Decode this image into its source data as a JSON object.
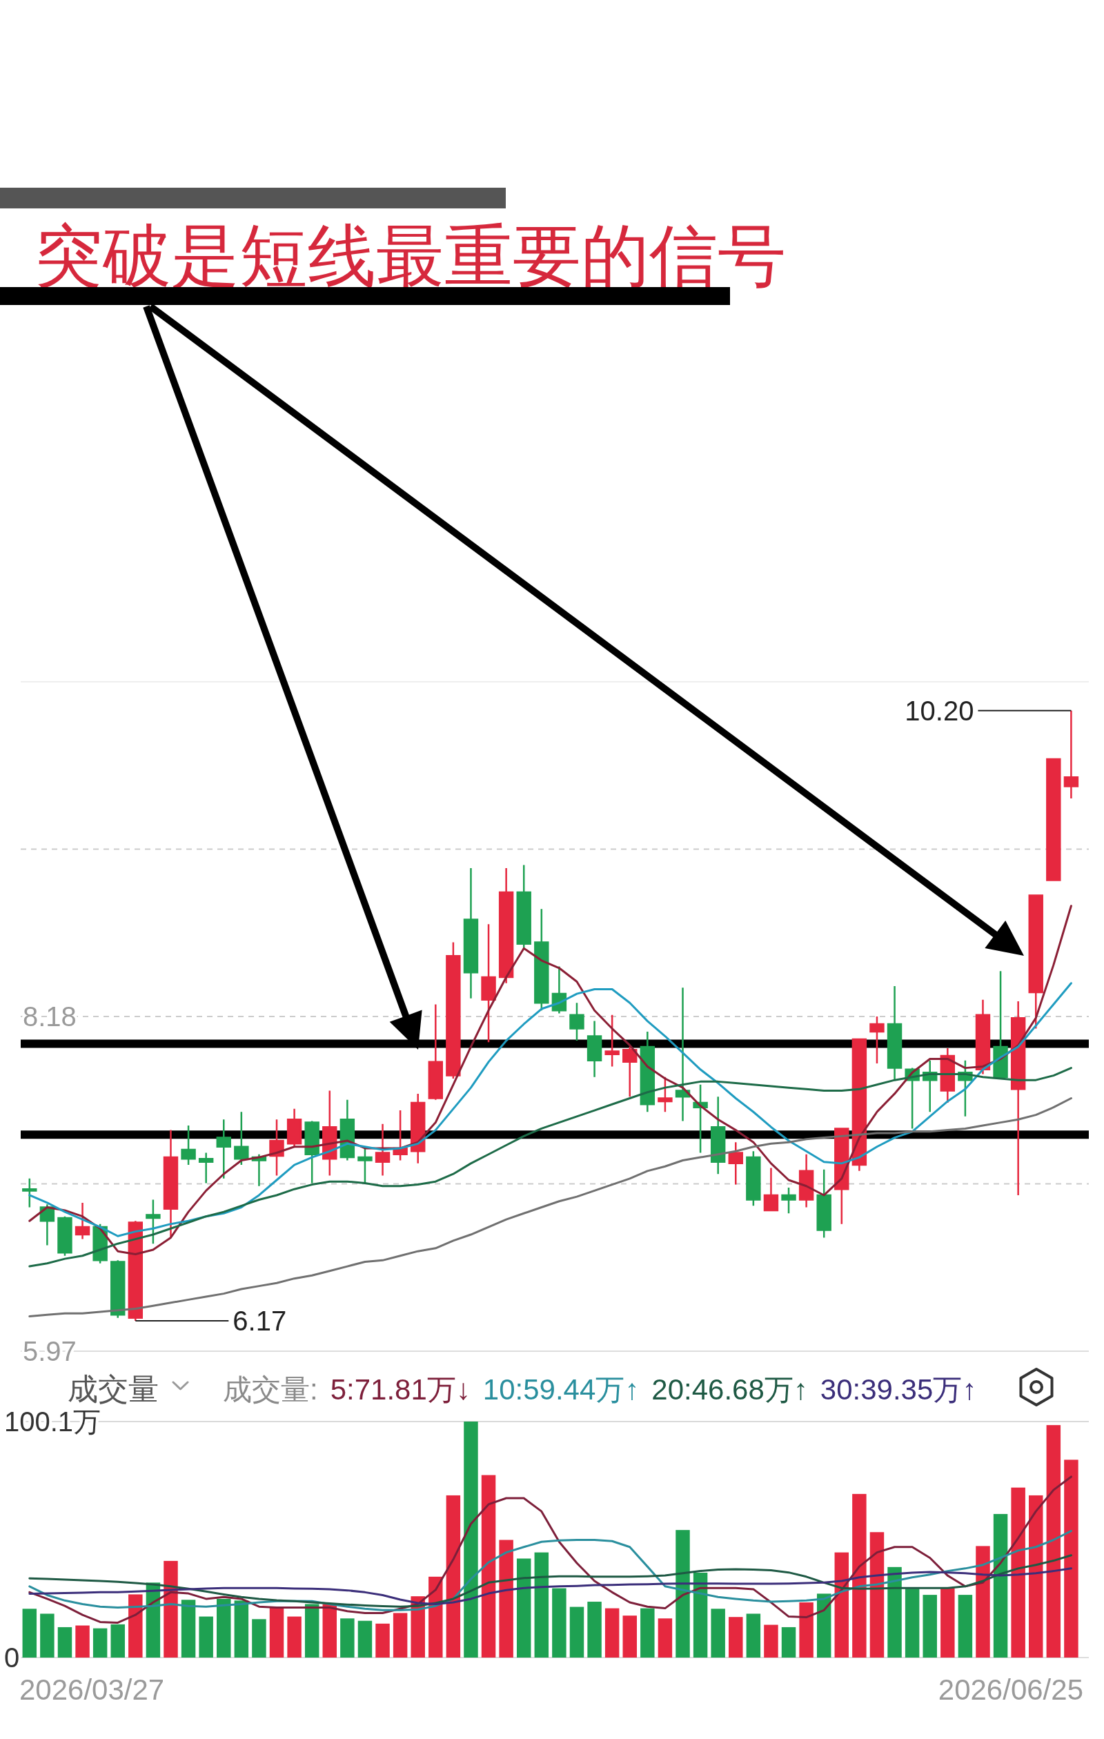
{
  "chart_data": [
    {
      "type": "candlestick",
      "title": "突破是短线最重要的信号",
      "categories": [
        null,
        null,
        null,
        null,
        null,
        null,
        null,
        null,
        null,
        null,
        null,
        null,
        null,
        null,
        null,
        null,
        null,
        null,
        null,
        null,
        null,
        null,
        null,
        null,
        null,
        null,
        null,
        null,
        null,
        null,
        null,
        null,
        null,
        null,
        null,
        null,
        null,
        null,
        null,
        null,
        null,
        null,
        null,
        null,
        null,
        null,
        null,
        null,
        null,
        null,
        null,
        null,
        null,
        null,
        null,
        null,
        null,
        null,
        null,
        null
      ],
      "ohlc": [
        [
          7.04,
          7.11,
          6.92,
          7.03
        ],
        [
          6.92,
          6.94,
          6.67,
          6.83
        ],
        [
          6.85,
          6.86,
          6.6,
          6.62
        ],
        [
          6.74,
          6.95,
          6.71,
          6.79
        ],
        [
          6.79,
          6.81,
          6.55,
          6.57
        ],
        [
          6.56,
          6.57,
          6.19,
          6.21
        ],
        [
          6.19,
          6.83,
          6.17,
          6.82
        ],
        [
          6.87,
          6.97,
          6.68,
          6.85
        ],
        [
          6.91,
          7.43,
          6.72,
          7.25
        ],
        [
          7.3,
          7.46,
          7.2,
          7.24
        ],
        [
          7.24,
          7.28,
          7.08,
          7.22
        ],
        [
          7.38,
          7.5,
          7.11,
          7.32
        ],
        [
          7.32,
          7.55,
          7.2,
          7.24
        ],
        [
          7.25,
          7.27,
          7.06,
          7.23
        ],
        [
          7.26,
          7.5,
          7.13,
          7.36
        ],
        [
          7.34,
          7.57,
          7.32,
          7.5
        ],
        [
          7.48,
          7.49,
          7.08,
          7.27
        ],
        [
          7.24,
          7.69,
          7.13,
          7.45
        ],
        [
          7.5,
          7.63,
          7.23,
          7.25
        ],
        [
          7.25,
          7.31,
          7.08,
          7.23
        ],
        [
          7.22,
          7.47,
          7.13,
          7.28
        ],
        [
          7.27,
          7.56,
          7.23,
          7.31
        ],
        [
          7.29,
          7.67,
          7.21,
          7.61
        ],
        [
          7.64,
          8.26,
          7.63,
          7.88
        ],
        [
          7.79,
          8.67,
          7.77,
          8.58
        ],
        [
          8.82,
          9.16,
          8.3,
          8.47
        ],
        [
          8.29,
          8.79,
          8.01,
          8.44
        ],
        [
          8.44,
          9.16,
          8.4,
          9.0
        ],
        [
          9.0,
          9.18,
          8.63,
          8.66
        ],
        [
          8.67,
          8.89,
          8.22,
          8.27
        ],
        [
          8.33,
          8.51,
          8.2,
          8.22
        ],
        [
          8.19,
          8.27,
          8.02,
          8.1
        ],
        [
          8.05,
          8.15,
          7.78,
          7.89
        ],
        [
          7.93,
          8.19,
          7.85,
          7.95
        ],
        [
          7.88,
          7.98,
          7.65,
          7.96
        ],
        [
          7.98,
          8.08,
          7.55,
          7.6
        ],
        [
          7.62,
          7.78,
          7.55,
          7.64
        ],
        [
          7.69,
          8.37,
          7.49,
          7.65
        ],
        [
          7.61,
          7.73,
          7.28,
          7.58
        ],
        [
          7.45,
          7.65,
          7.14,
          7.22
        ],
        [
          7.21,
          7.35,
          7.07,
          7.28
        ],
        [
          7.25,
          7.29,
          6.93,
          6.97
        ],
        [
          6.9,
          7.18,
          6.9,
          7.0
        ],
        [
          7.0,
          7.05,
          6.88,
          6.97
        ],
        [
          6.97,
          7.27,
          6.92,
          7.16
        ],
        [
          7.0,
          7.17,
          6.72,
          6.77
        ],
        [
          7.04,
          7.44,
          6.81,
          7.44
        ],
        [
          7.2,
          8.03,
          7.16,
          8.03
        ],
        [
          8.08,
          8.18,
          7.87,
          8.13
        ],
        [
          8.13,
          8.38,
          7.76,
          7.84
        ],
        [
          7.83,
          7.84,
          7.44,
          7.76
        ],
        [
          7.81,
          7.89,
          7.55,
          7.76
        ],
        [
          7.69,
          7.97,
          7.61,
          7.92
        ],
        [
          7.81,
          7.89,
          7.52,
          7.76
        ],
        [
          7.83,
          8.29,
          7.8,
          8.19
        ],
        [
          7.98,
          8.48,
          7.78,
          7.78
        ],
        [
          7.7,
          8.28,
          7.0,
          8.17
        ],
        [
          8.34,
          8.98,
          8.1,
          8.98
        ],
        [
          9.08,
          9.88,
          9.08,
          9.88
        ],
        [
          9.7,
          10.2,
          9.62,
          9.76
        ]
      ],
      "colors": [
        "#1ea152",
        "#1ea152",
        "#1ea152",
        "#e6283f",
        "#1ea152",
        "#1ea152",
        "#e6283f",
        "#1ea152",
        "#e6283f",
        "#1ea152",
        "#1ea152",
        "#1ea152",
        "#1ea152",
        "#1ea152",
        "#e6283f",
        "#e6283f",
        "#1ea152",
        "#e6283f",
        "#1ea152",
        "#1ea152",
        "#e6283f",
        "#e6283f",
        "#e6283f",
        "#e6283f",
        "#e6283f",
        "#1ea152",
        "#e6283f",
        "#e6283f",
        "#1ea152",
        "#1ea152",
        "#1ea152",
        "#1ea152",
        "#1ea152",
        "#e6283f",
        "#e6283f",
        "#1ea152",
        "#e6283f",
        "#1ea152",
        "#1ea152",
        "#1ea152",
        "#e6283f",
        "#1ea152",
        "#e6283f",
        "#1ea152",
        "#e6283f",
        "#1ea152",
        "#e6283f",
        "#e6283f",
        "#e6283f",
        "#1ea152",
        "#1ea152",
        "#1ea152",
        "#e6283f",
        "#1ea152",
        "#e6283f",
        "#1ea152",
        "#e6283f",
        "#e6283f",
        "#e6283f",
        "#e6283f"
      ],
      "series": [
        {
          "type": "line",
          "color": "#8b1f35",
          "values": [
            6.83,
            6.92,
            6.9,
            6.86,
            6.78,
            6.63,
            6.61,
            6.64,
            6.72,
            6.89,
            7.03,
            7.14,
            7.23,
            7.25,
            7.28,
            7.32,
            7.32,
            7.34,
            7.36,
            7.31,
            7.31,
            7.31,
            7.35,
            7.48,
            7.73,
            7.98,
            8.22,
            8.44,
            8.63,
            8.55,
            8.5,
            8.41,
            8.22,
            8.1,
            7.99,
            7.85,
            7.77,
            7.71,
            7.59,
            7.5,
            7.43,
            7.35,
            7.21,
            7.1,
            7.06,
            7.0,
            7.11,
            7.38,
            7.55,
            7.67,
            7.81,
            7.9,
            7.9,
            7.84,
            7.85,
            7.9,
            7.99,
            8.17,
            8.52,
            8.91
          ]
        },
        {
          "type": "line",
          "color": "#1f9cc0",
          "values": [
            7.0,
            6.95,
            6.89,
            6.84,
            6.79,
            6.73,
            6.76,
            6.78,
            6.81,
            6.83,
            6.86,
            6.88,
            6.92,
            7.0,
            7.1,
            7.2,
            7.25,
            7.29,
            7.34,
            7.32,
            7.3,
            7.31,
            7.34,
            7.43,
            7.57,
            7.71,
            7.88,
            8.02,
            8.13,
            8.23,
            8.27,
            8.33,
            8.36,
            8.36,
            8.27,
            8.15,
            8.05,
            7.94,
            7.83,
            7.74,
            7.64,
            7.55,
            7.45,
            7.36,
            7.29,
            7.22,
            7.21,
            7.25,
            7.32,
            7.38,
            7.42,
            7.52,
            7.62,
            7.7,
            7.83,
            7.91,
            7.98,
            8.12,
            8.26,
            8.4
          ]
        },
        {
          "type": "line",
          "color": "#1d6b48",
          "values": [
            6.53,
            6.55,
            6.58,
            6.6,
            6.64,
            6.68,
            6.71,
            6.74,
            6.78,
            6.82,
            6.86,
            6.89,
            6.93,
            6.97,
            7.0,
            7.04,
            7.07,
            7.09,
            7.09,
            7.08,
            7.06,
            7.06,
            7.07,
            7.09,
            7.14,
            7.21,
            7.27,
            7.33,
            7.39,
            7.44,
            7.48,
            7.52,
            7.56,
            7.6,
            7.64,
            7.68,
            7.71,
            7.73,
            7.75,
            7.75,
            7.74,
            7.73,
            7.72,
            7.71,
            7.7,
            7.69,
            7.69,
            7.7,
            7.73,
            7.76,
            7.78,
            7.8,
            7.8,
            7.8,
            7.78,
            7.77,
            7.76,
            7.76,
            7.79,
            7.84
          ]
        },
        {
          "type": "line",
          "color": "#707070",
          "values": [
            6.2,
            6.21,
            6.22,
            6.22,
            6.23,
            6.24,
            6.25,
            6.27,
            6.29,
            6.31,
            6.33,
            6.35,
            6.38,
            6.4,
            6.42,
            6.45,
            6.47,
            6.5,
            6.53,
            6.56,
            6.57,
            6.6,
            6.63,
            6.65,
            6.7,
            6.74,
            6.79,
            6.84,
            6.88,
            6.92,
            6.96,
            6.99,
            7.03,
            7.07,
            7.11,
            7.16,
            7.19,
            7.23,
            7.25,
            7.27,
            7.29,
            7.32,
            7.34,
            7.35,
            7.37,
            7.38,
            7.39,
            7.4,
            7.41,
            7.41,
            7.42,
            7.42,
            7.43,
            7.44,
            7.46,
            7.48,
            7.5,
            7.53,
            7.58,
            7.64
          ]
        }
      ],
      "ylim": [
        5.97,
        10.39
      ],
      "yticks": [
        5.97,
        {
          "value": 7.075,
          "label": null
        },
        8.18,
        {
          "value": 9.285,
          "label": null
        }
      ],
      "grid": "y",
      "tick_labels": "y",
      "ref_lines": [
        {
          "axis": "y",
          "value": 7.4,
          "color": "#000000"
        },
        {
          "axis": "y",
          "value": 8.0,
          "color": "#000000"
        }
      ],
      "annotations": [
        "10.20",
        "6.17"
      ]
    },
    {
      "type": "bar",
      "title": "成交量",
      "legend_title": "成交量:",
      "legend": "top",
      "tick_labels": "y",
      "categories": [
        null,
        null,
        null,
        null,
        null,
        null,
        null,
        null,
        null,
        null,
        null,
        null,
        null,
        null,
        null,
        null,
        null,
        null,
        null,
        null,
        null,
        null,
        null,
        null,
        null,
        null,
        null,
        null,
        null,
        null,
        null,
        null,
        null,
        null,
        null,
        null,
        null,
        null,
        null,
        null,
        null,
        null,
        null,
        null,
        null,
        null,
        null,
        null,
        null,
        null,
        null,
        null,
        null,
        null,
        null,
        null,
        null,
        null,
        null,
        null
      ],
      "series": [
        {
          "type": "bar",
          "colors": [
            "#1ea152",
            "#1ea152",
            "#1ea152",
            "#e6283f",
            "#1ea152",
            "#1ea152",
            "#e6283f",
            "#1ea152",
            "#e6283f",
            "#1ea152",
            "#1ea152",
            "#1ea152",
            "#1ea152",
            "#1ea152",
            "#e6283f",
            "#e6283f",
            "#1ea152",
            "#e6283f",
            "#1ea152",
            "#1ea152",
            "#e6283f",
            "#e6283f",
            "#e6283f",
            "#e6283f",
            "#e6283f",
            "#1ea152",
            "#e6283f",
            "#e6283f",
            "#1ea152",
            "#1ea152",
            "#1ea152",
            "#1ea152",
            "#1ea152",
            "#e6283f",
            "#e6283f",
            "#1ea152",
            "#e6283f",
            "#1ea152",
            "#1ea152",
            "#1ea152",
            "#e6283f",
            "#1ea152",
            "#e6283f",
            "#1ea152",
            "#e6283f",
            "#1ea152",
            "#e6283f",
            "#e6283f",
            "#e6283f",
            "#1ea152",
            "#1ea152",
            "#1ea152",
            "#e6283f",
            "#1ea152",
            "#e6283f",
            "#1ea152",
            "#e6283f",
            "#e6283f",
            "#e6283f",
            "#e6283f"
          ],
          "values": [
            20.7,
            18.6,
            12.9,
            13.6,
            12.4,
            14.1,
            26.8,
            31.8,
            41.0,
            24.5,
            17.4,
            24.9,
            24.2,
            16.3,
            21.2,
            17.4,
            22.7,
            22.7,
            16.6,
            15.6,
            14.4,
            18.9,
            26.0,
            34.3,
            68.8,
            100.1,
            77.4,
            49.9,
            42.0,
            44.6,
            29.4,
            21.5,
            23.7,
            20.9,
            17.8,
            20.9,
            16.6,
            54.1,
            36.0,
            20.7,
            17.2,
            18.6,
            13.9,
            12.9,
            23.4,
            27.1,
            44.6,
            69.4,
            53.2,
            38.4,
            29.2,
            26.6,
            29.5,
            26.6,
            47.3,
            60.9,
            72.1,
            68.8,
            98.6,
            83.9
          ]
        },
        {
          "type": "line",
          "name": "5:71.81万↓",
          "color": "#7d1f3a",
          "values": [
            27.7,
            24.9,
            21.9,
            18.1,
            15.1,
            14.8,
            18.1,
            23.4,
            27.7,
            27.2,
            24.9,
            25.7,
            24.9,
            21.6,
            21.2,
            21.2,
            21.2,
            21.2,
            19.7,
            18.9,
            18.9,
            20.7,
            22.7,
            28.7,
            41.6,
            56.7,
            65.0,
            67.6,
            67.6,
            62.0,
            49.1,
            40.1,
            32.5,
            27.7,
            23.4,
            21.6,
            20.9,
            26.5,
            29.5,
            29.5,
            29.5,
            29.0,
            23.4,
            17.4,
            17.1,
            20.1,
            28.7,
            38.6,
            44.6,
            46.9,
            46.9,
            42.3,
            34.8,
            30.2,
            31.8,
            40.1,
            50.7,
            62.0,
            71.1,
            76.7
          ]
        },
        {
          "type": "line",
          "name": "10:59.44万↑",
          "color": "#2a8f9e",
          "values": [
            30.2,
            26.5,
            24.2,
            22.7,
            21.6,
            21.2,
            21.5,
            21.9,
            22.7,
            21.9,
            21.6,
            22.2,
            22.7,
            23.4,
            23.9,
            24.0,
            23.9,
            22.7,
            21.6,
            20.7,
            20.1,
            20.1,
            20.4,
            21.9,
            24.9,
            33.3,
            40.4,
            44.6,
            46.9,
            49.1,
            49.7,
            49.9,
            49.9,
            49.4,
            46.9,
            38.6,
            30.2,
            28.7,
            27.2,
            25.7,
            24.9,
            24.2,
            23.7,
            23.9,
            24.2,
            24.9,
            28.0,
            30.2,
            31.0,
            32.5,
            34.0,
            35.2,
            36.7,
            37.8,
            39.3,
            42.3,
            45.4,
            46.9,
            49.9,
            53.7
          ]
        },
        {
          "type": "line",
          "name": "20:46.68万↑",
          "color": "#1e5944",
          "values": [
            33.6,
            33.4,
            33.1,
            32.8,
            32.5,
            32.1,
            31.6,
            31.0,
            30.2,
            29.2,
            28.0,
            26.8,
            25.7,
            24.9,
            24.3,
            23.9,
            23.4,
            23.0,
            22.5,
            22.1,
            21.8,
            21.6,
            21.9,
            23.1,
            24.9,
            28.3,
            31.8,
            32.8,
            33.7,
            34.2,
            34.5,
            34.5,
            34.3,
            34.3,
            34.3,
            34.5,
            34.8,
            35.8,
            36.7,
            37.3,
            37.5,
            37.3,
            37.0,
            36.1,
            34.3,
            31.8,
            29.5,
            29.2,
            29.3,
            29.5,
            29.5,
            29.5,
            29.5,
            30.2,
            32.5,
            35.5,
            37.8,
            39.3,
            41.1,
            43.4
          ]
        },
        {
          "type": "line",
          "name": "30:39.35万↑",
          "color": "#3b2e7a",
          "values": [
            27.1,
            27.2,
            27.4,
            27.5,
            27.7,
            27.7,
            28.0,
            28.3,
            28.7,
            29.0,
            29.3,
            29.5,
            29.5,
            29.5,
            29.5,
            29.3,
            29.2,
            29.0,
            28.5,
            27.7,
            26.5,
            24.6,
            23.1,
            22.7,
            23.4,
            24.9,
            27.2,
            28.6,
            29.5,
            29.9,
            30.2,
            30.4,
            30.7,
            30.8,
            31.0,
            31.1,
            31.3,
            31.4,
            31.4,
            31.4,
            31.3,
            31.3,
            31.3,
            31.4,
            31.6,
            31.8,
            32.5,
            34.0,
            34.8,
            35.5,
            36.0,
            36.3,
            36.1,
            35.8,
            35.2,
            34.8,
            35.2,
            35.8,
            36.7,
            37.8
          ]
        }
      ],
      "ylim": [
        0,
        100.1
      ],
      "yticks": [
        0,
        {
          "value": 100.1,
          "label": "100.1万"
        }
      ],
      "annotations": [
        "2026/03/27",
        "2026/06/25"
      ]
    }
  ]
}
